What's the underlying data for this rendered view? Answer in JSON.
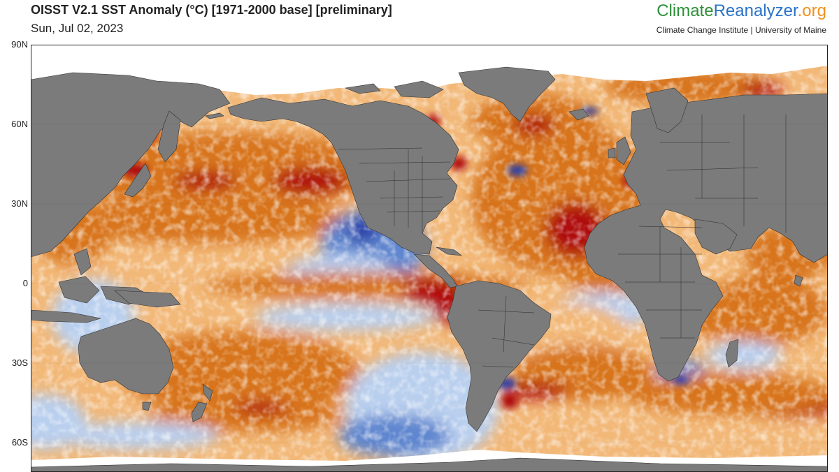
{
  "header": {
    "title": "OISST V2.1 SST Anomaly (°C) [1971-2000 base] [preliminary]",
    "date": "Sun, Jul 02, 2023"
  },
  "brand": {
    "part1": "Climate",
    "part2": "Reanalyzer",
    "part3": ".org",
    "org": "Climate Change Institute | University of Maine",
    "colors": {
      "climate": "#2f8f3a",
      "reanalyzer": "#2a72c8",
      "org": "#f0901c"
    }
  },
  "map": {
    "projection": "equirectangular",
    "lat_ticks": [
      "90N",
      "60N",
      "30N",
      "0",
      "30S",
      "60S"
    ],
    "land_color": "#7b7b7b",
    "sea_ice_color": "#ffffff",
    "anomaly_colors": {
      "strong_warm": "#b01010",
      "warm": "#d8741e",
      "mild_warm": "#f2b878",
      "neutral": "#fbf1e4",
      "mild_cool": "#b9cfee",
      "cool": "#5e86cf",
      "strong_cool": "#2a3fa8"
    }
  }
}
